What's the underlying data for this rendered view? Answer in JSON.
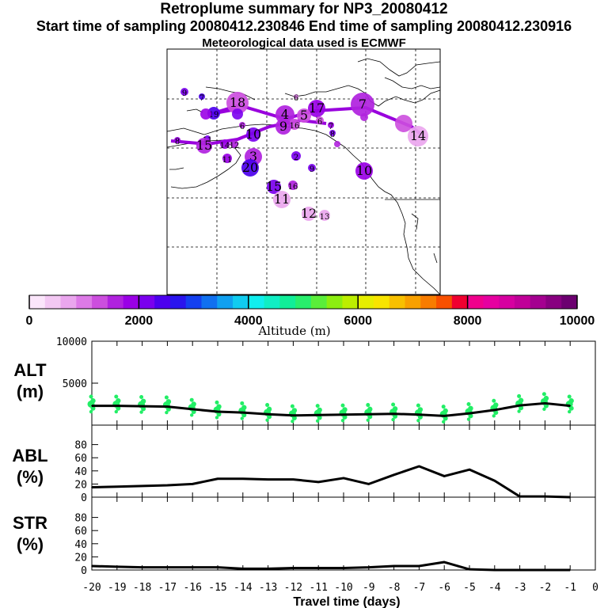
{
  "header": {
    "title": "Retroplume summary for NP3_20080412",
    "sampling": "Start time of sampling 20080412.230846     End time of sampling 20080412.230916",
    "met": "Meteorological data used is ECMWF"
  },
  "colors": {
    "colorbar": [
      "#fbe6fb",
      "#f3c8f3",
      "#eaa6ee",
      "#dd7ae7",
      "#cc4ede",
      "#b022de",
      "#9a00e6",
      "#7a00ee",
      "#4c00ee",
      "#2a14ee",
      "#1440f0",
      "#1070f0",
      "#10a0f0",
      "#10ccf0",
      "#10eeee",
      "#10eec4",
      "#10ee98",
      "#28ee6c",
      "#5aee3a",
      "#8cee10",
      "#bcee00",
      "#e6ee00",
      "#f8e400",
      "#f8c000",
      "#f8a000",
      "#f87c00",
      "#f85000",
      "#f00030",
      "#f0008c",
      "#e600a0",
      "#d600a0",
      "#c00098",
      "#a40090",
      "#880080",
      "#6c0070"
    ],
    "track": "#9900dd",
    "alt_dots": "#22ee66"
  },
  "colorbar": {
    "label": "Altitude (m)",
    "ticks": [
      "0",
      "2000",
      "4000",
      "6000",
      "8000",
      "10000"
    ]
  },
  "map_labels": [
    {
      "t": "9",
      "a": 2000
    },
    {
      "t": "7",
      "a": 2500
    },
    {
      "t": "18",
      "a": 1300
    },
    {
      "t": "19",
      "a": 2300
    },
    {
      "t": "6",
      "a": 1000
    },
    {
      "t": "17",
      "a": 1800
    },
    {
      "t": "4",
      "a": 1700
    },
    {
      "t": "5",
      "a": 1200
    },
    {
      "t": "16",
      "a": 1200
    },
    {
      "t": "6",
      "a": 1400
    },
    {
      "t": "7",
      "a": 1800
    },
    {
      "t": "9",
      "a": 1500
    },
    {
      "t": "10",
      "a": 2000
    },
    {
      "t": "11",
      "a": 2200
    },
    {
      "t": "8",
      "a": 2000
    },
    {
      "t": "6",
      "a": 1600
    },
    {
      "t": "7",
      "a": 1500
    },
    {
      "t": "8",
      "a": 1800
    },
    {
      "t": "15",
      "a": 1600
    },
    {
      "t": "14",
      "a": 1800
    },
    {
      "t": "12",
      "a": 1600
    },
    {
      "t": "11",
      "a": 1900
    },
    {
      "t": "3",
      "a": 1700
    },
    {
      "t": "20",
      "a": 2300
    },
    {
      "t": "2",
      "a": 2200
    },
    {
      "t": "9",
      "a": 2000
    },
    {
      "t": "10",
      "a": 1900
    },
    {
      "t": "15",
      "a": 2000
    },
    {
      "t": "16",
      "a": 1600
    },
    {
      "t": "11",
      "a": 800
    },
    {
      "t": "12",
      "a": 600
    },
    {
      "t": "13",
      "a": 600
    },
    {
      "t": "14",
      "a": 800
    }
  ],
  "chart_data": [
    {
      "type": "line",
      "panel": "ALT",
      "ylabel": "ALT\n(m)",
      "ylabel_lines": [
        "ALT",
        "(m)"
      ],
      "yticks": [
        "10000",
        "5000"
      ],
      "ylim": [
        0,
        10000
      ],
      "x": [
        -20,
        -19,
        -18,
        -17,
        -16,
        -15,
        -14,
        -13,
        -12,
        -11,
        -10,
        -9,
        -8,
        -7,
        -6,
        -5,
        -4,
        -3,
        -2,
        -1
      ],
      "values": [
        2300,
        2300,
        2250,
        2200,
        1900,
        1600,
        1500,
        1300,
        1150,
        1200,
        1250,
        1300,
        1350,
        1250,
        1100,
        1400,
        1800,
        2350,
        2600,
        2300
      ]
    },
    {
      "type": "line",
      "panel": "ABL",
      "ylabel_lines": [
        "ABL",
        "(%)"
      ],
      "yticks": [
        "80",
        "60",
        "40",
        "20",
        "0"
      ],
      "ylim": [
        0,
        100
      ],
      "x": [
        -20,
        -19,
        -18,
        -17,
        -16,
        -15,
        -14,
        -13,
        -12,
        -11,
        -10,
        -9,
        -8,
        -7,
        -6,
        -5,
        -4,
        -3,
        -2,
        -1
      ],
      "values": [
        15,
        16,
        17,
        18,
        20,
        28,
        28,
        27,
        27,
        23,
        29,
        20,
        34,
        47,
        32,
        42,
        25,
        1,
        1,
        0
      ]
    },
    {
      "type": "line",
      "panel": "STR",
      "ylabel_lines": [
        "STR",
        "(%)"
      ],
      "yticks": [
        "80",
        "60",
        "40",
        "20",
        "0"
      ],
      "ylim": [
        0,
        100
      ],
      "x": [
        -20,
        -19,
        -18,
        -17,
        -16,
        -15,
        -14,
        -13,
        -12,
        -11,
        -10,
        -9,
        -8,
        -7,
        -6,
        -5,
        -4,
        -3,
        -2,
        -1
      ],
      "values": [
        6,
        5,
        4,
        4,
        4,
        4,
        2,
        2,
        3,
        3,
        3,
        4,
        6,
        6,
        12,
        1,
        0,
        0,
        0,
        0
      ],
      "xlabel": "Travel time (days)",
      "xticks": [
        "-20",
        "-19",
        "-18",
        "-17",
        "-16",
        "-15",
        "-14",
        "-13",
        "-12",
        "-11",
        "-10",
        "-9",
        "-8",
        "-7",
        "-6",
        "-5",
        "-4",
        "-3",
        "-2",
        "-1",
        "0"
      ]
    }
  ]
}
